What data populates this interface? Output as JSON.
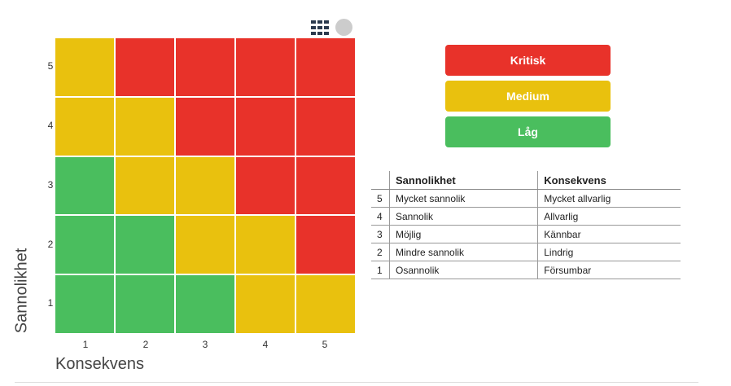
{
  "toolbar": {
    "grid_icon": "grid-icon",
    "circle_icon": "circle-button"
  },
  "chart_data": {
    "type": "heatmap",
    "xlabel": "Konsekvens",
    "ylabel": "Sannolikhet",
    "x_ticks": [
      "1",
      "2",
      "3",
      "4",
      "5"
    ],
    "y_ticks": [
      "5",
      "4",
      "3",
      "2",
      "1"
    ],
    "levels": {
      "critical": {
        "label": "Kritisk",
        "color": "#e8322a"
      },
      "medium": {
        "label": "Medium",
        "color": "#e9c10e"
      },
      "low": {
        "label": "Låg",
        "color": "#4abe5e"
      }
    },
    "grid": [
      [
        "medium",
        "critical",
        "critical",
        "critical",
        "critical"
      ],
      [
        "medium",
        "medium",
        "critical",
        "critical",
        "critical"
      ],
      [
        "low",
        "medium",
        "medium",
        "critical",
        "critical"
      ],
      [
        "low",
        "low",
        "medium",
        "medium",
        "critical"
      ],
      [
        "low",
        "low",
        "low",
        "medium",
        "medium"
      ]
    ]
  },
  "legend": [
    {
      "label": "Kritisk",
      "color": "#e8322a"
    },
    {
      "label": "Medium",
      "color": "#e9c10e"
    },
    {
      "label": "Låg",
      "color": "#4abe5e"
    }
  ],
  "table": {
    "headers": [
      "",
      "Sannolikhet",
      "Konsekvens"
    ],
    "rows": [
      {
        "num": "5",
        "sannolikhet": "Mycket sannolik",
        "konsekvens": "Mycket allvarlig"
      },
      {
        "num": "4",
        "sannolikhet": "Sannolik",
        "konsekvens": "Allvarlig"
      },
      {
        "num": "3",
        "sannolikhet": "Möjlig",
        "konsekvens": "Kännbar"
      },
      {
        "num": "2",
        "sannolikhet": "Mindre sannolik",
        "konsekvens": "Lindrig"
      },
      {
        "num": "1",
        "sannolikhet": "Osannolik",
        "konsekvens": "Försumbar"
      }
    ]
  }
}
